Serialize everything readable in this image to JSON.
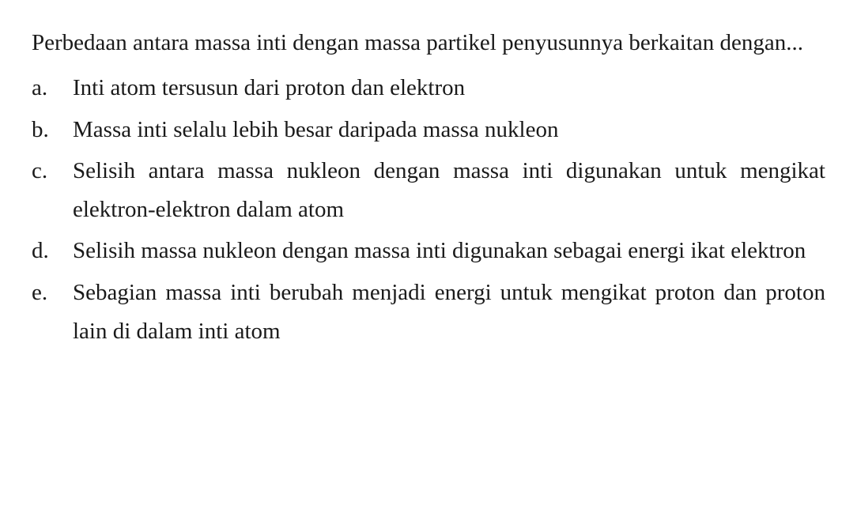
{
  "question": {
    "text": "Perbedaan antara massa inti dengan massa partikel penyusunnya berkaitan dengan...",
    "font_size": 29,
    "text_color": "#1a1a1a",
    "background_color": "#ffffff"
  },
  "options": [
    {
      "letter": "a.",
      "text": "Inti atom tersusun dari proton dan elektron"
    },
    {
      "letter": "b.",
      "text": "Massa inti selalu lebih besar daripada massa nukleon"
    },
    {
      "letter": "c.",
      "text": "Selisih antara massa nukleon dengan massa inti digunakan untuk mengikat elektron-elektron dalam atom"
    },
    {
      "letter": "d.",
      "text": "Selisih massa nukleon dengan massa inti digunakan sebagai energi ikat elektron"
    },
    {
      "letter": "e.",
      "text": "Sebagian massa inti berubah menjadi energi untuk mengikat proton dan proton lain di dalam inti atom"
    }
  ]
}
